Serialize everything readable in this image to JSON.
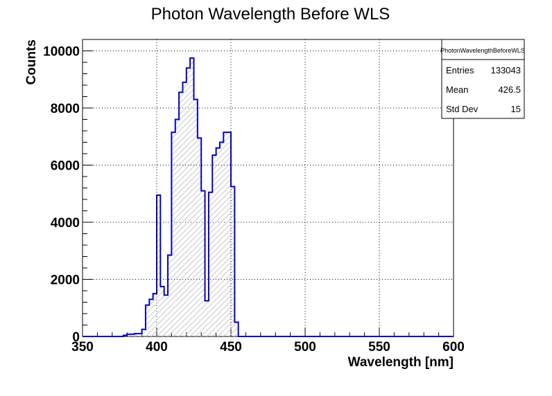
{
  "chart_data": {
    "type": "bar",
    "title": "Photon Wavelength Before WLS",
    "xlabel": "Wavelength [nm]",
    "ylabel": "Counts",
    "xlim": [
      350,
      600
    ],
    "ylim": [
      0,
      10400
    ],
    "xticks": [
      350,
      400,
      450,
      500,
      550,
      600
    ],
    "yticks": [
      0,
      2000,
      4000,
      6000,
      8000,
      10000
    ],
    "grid": true,
    "bin_edges_start": 350,
    "bin_width": 2.5,
    "values": [
      0,
      0,
      0,
      0,
      0,
      0,
      0,
      0,
      0,
      0,
      0,
      40,
      80,
      80,
      100,
      100,
      250,
      1100,
      1300,
      1500,
      4950,
      1750,
      1450,
      2850,
      7150,
      7600,
      8550,
      8900,
      9400,
      9750,
      8300,
      6950,
      5100,
      1250,
      5050,
      6350,
      6600,
      6800,
      7150,
      7150,
      5250,
      500,
      0,
      0,
      0,
      0,
      0,
      0,
      0,
      0,
      0,
      0,
      0,
      0,
      0,
      0,
      0,
      0,
      0,
      0,
      0,
      0,
      0,
      0,
      0,
      0,
      0,
      0,
      0,
      0,
      0,
      0,
      0,
      0,
      0,
      0,
      0,
      0,
      0,
      0,
      0,
      0,
      0,
      0,
      0,
      0,
      0,
      0,
      0,
      0,
      0,
      0,
      0,
      0,
      0,
      0,
      0,
      0,
      0,
      0
    ],
    "colors": {
      "line": "#0000c8",
      "hatch": "#c8c8c8"
    }
  },
  "stats": {
    "name": "PhotonWavelengthBeforeWLS",
    "rows": [
      {
        "label": "Entries",
        "value": "133043"
      },
      {
        "label": "Mean",
        "value": "426.5"
      },
      {
        "label": "Std Dev",
        "value": "15"
      }
    ]
  }
}
